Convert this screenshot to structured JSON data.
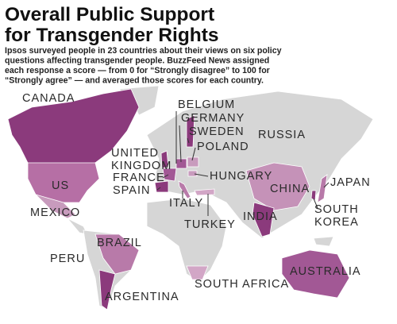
{
  "header": {
    "title_lines": [
      "Overall Public Support",
      "for Transgender Rights"
    ],
    "description_lines": [
      "Ipsos surveyed people in 23 countries about their views on six policy",
      "questions affecting transgender people. BuzzFeed News assigned",
      "each response a score — from 0 for “Strongly disagree” to 100 for",
      "“Strongly agree” — and averaged those scores for each country."
    ]
  },
  "countries": [
    {
      "label_lines": [
        "CANADA"
      ]
    },
    {
      "label_lines": [
        "BELGIUM"
      ]
    },
    {
      "label_lines": [
        "GERMANY"
      ]
    },
    {
      "label_lines": [
        "SWEDEN"
      ]
    },
    {
      "label_lines": [
        "RUSSIA"
      ]
    },
    {
      "label_lines": [
        "POLAND"
      ]
    },
    {
      "label_lines": [
        "UNITED",
        "KINGDOM"
      ]
    },
    {
      "label_lines": [
        "FRANCE"
      ]
    },
    {
      "label_lines": [
        "HUNGARY"
      ]
    },
    {
      "label_lines": [
        "JAPAN"
      ]
    },
    {
      "label_lines": [
        "US"
      ]
    },
    {
      "label_lines": [
        "SPAIN"
      ]
    },
    {
      "label_lines": [
        "CHINA"
      ]
    },
    {
      "label_lines": [
        "ITALY"
      ]
    },
    {
      "label_lines": [
        "SOUTH",
        "KOREA"
      ]
    },
    {
      "label_lines": [
        "MEXICO"
      ]
    },
    {
      "label_lines": [
        "INDIA"
      ]
    },
    {
      "label_lines": [
        "TURKEY"
      ]
    },
    {
      "label_lines": [
        "BRAZIL"
      ]
    },
    {
      "label_lines": [
        "PERU"
      ]
    },
    {
      "label_lines": [
        "AUSTRALIA"
      ]
    },
    {
      "label_lines": [
        "SOUTH AFRICA"
      ]
    },
    {
      "label_lines": [
        "ARGENTINA"
      ]
    }
  ]
}
